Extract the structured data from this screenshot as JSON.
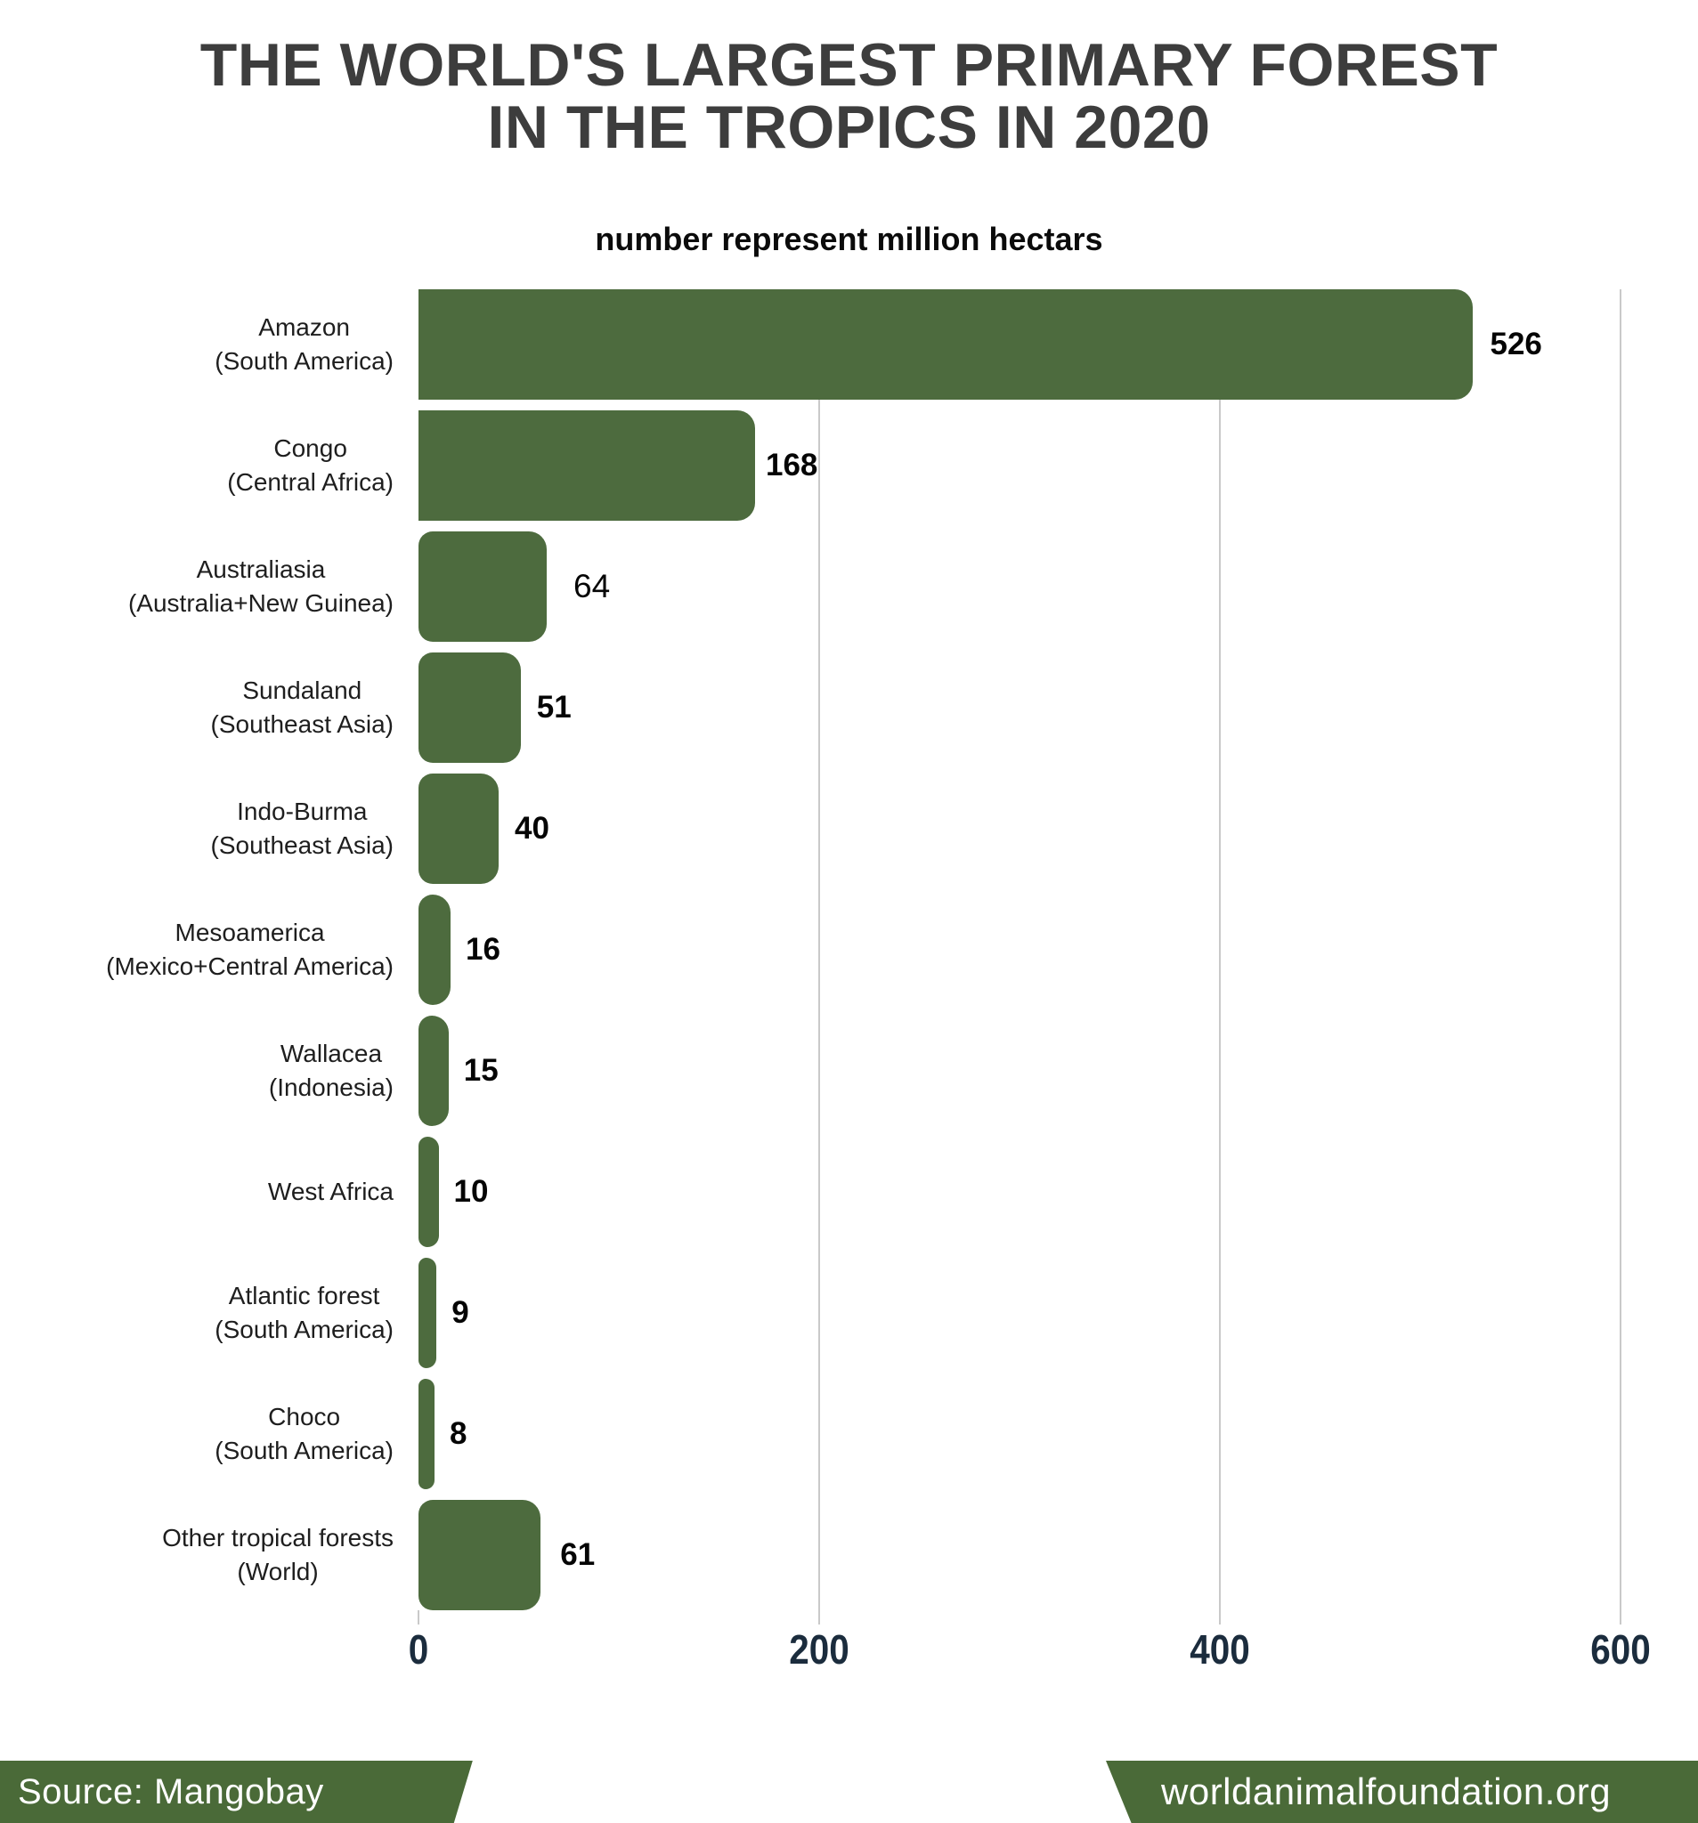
{
  "title": {
    "line1": "THE WORLD'S LARGEST PRIMARY FOREST",
    "line2": "IN THE TROPICS IN 2020"
  },
  "subtitle": "number represent million hectars",
  "footer": {
    "source": "Source: Mangobay",
    "website": "worldanimalfoundation.org"
  },
  "colors": {
    "bar": "#4d6b3e",
    "footer_band": "#4a6a38",
    "gridline": "#c9c9c9",
    "tick_label": "#1b2c3d",
    "title_text": "#3d3d3d"
  },
  "chart_data": {
    "type": "bar",
    "orientation": "horizontal",
    "title": "THE WORLD'S LARGEST PRIMARY FOREST IN THE TROPICS IN 2020",
    "subtitle": "number represent million hectars",
    "unit": "million hectares",
    "grid": "vertical-gridlines",
    "legend": "none",
    "xlim": [
      0,
      620
    ],
    "xticks": [
      0,
      200,
      400,
      600
    ],
    "categories": [
      "Amazon (South America)",
      "Congo (Central Africa)",
      "Australiasia (Australia+New Guinea)",
      "Sundaland (Southeast Asia)",
      "Indo-Burma (Southeast Asia)",
      "Mesoamerica (Mexico+Central America)",
      "Wallacea (Indonesia)",
      "West Africa",
      "Atlantic forest (South America)",
      "Choco (South America)",
      "Other tropical forests (World)"
    ],
    "values": [
      526,
      168,
      64,
      51,
      40,
      16,
      15,
      10,
      9,
      8,
      61
    ],
    "bars": [
      {
        "label_line1": "Amazon",
        "label_line2": "(South America)",
        "value": 526,
        "value_bold": true,
        "value_gap": 20
      },
      {
        "label_line1": "Congo",
        "label_line2": "(Central Africa)",
        "value": 168,
        "value_bold": true,
        "value_gap": 12
      },
      {
        "label_line1": "Australiasia",
        "label_line2": "(Australia+New Guinea)",
        "value": 64,
        "value_bold": false,
        "value_gap": 30
      },
      {
        "label_line1": "Sundaland",
        "label_line2": "(Southeast Asia)",
        "value": 51,
        "value_bold": true,
        "value_gap": 18
      },
      {
        "label_line1": "Indo-Burma",
        "label_line2": "(Southeast Asia)",
        "value": 40,
        "value_bold": true,
        "value_gap": 18
      },
      {
        "label_line1": "Mesoamerica",
        "label_line2": "(Mexico+Central America)",
        "value": 16,
        "value_bold": true,
        "value_gap": 17
      },
      {
        "label_line1": "Wallacea",
        "label_line2": "(Indonesia)",
        "value": 15,
        "value_bold": true,
        "value_gap": 17
      },
      {
        "label_line1": "West Africa",
        "label_line2": "",
        "value": 10,
        "value_bold": true,
        "value_gap": 17
      },
      {
        "label_line1": "Atlantic forest",
        "label_line2": "(South America)",
        "value": 9,
        "value_bold": true,
        "value_gap": 17
      },
      {
        "label_line1": "Choco",
        "label_line2": "(South America)",
        "value": 8,
        "value_bold": true,
        "value_gap": 17
      },
      {
        "label_line1": "Other tropical forests",
        "label_line2": "(World)",
        "value": 61,
        "value_bold": true,
        "value_gap": 22
      }
    ]
  }
}
